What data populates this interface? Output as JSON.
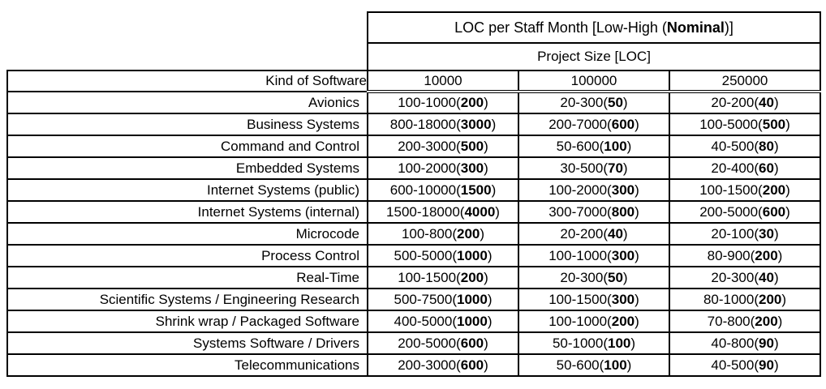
{
  "chart_data": {
    "type": "table",
    "title": {
      "prefix": "LOC per Staff Month [Low-High (",
      "bold": "Nominal",
      "suffix": ")]"
    },
    "subtitle": "Project Size [LOC]",
    "row_header_label": "Kind of Software",
    "project_sizes": [
      "10000",
      "100000",
      "250000"
    ],
    "colors": {
      "border": "#000000",
      "text": "#000000",
      "background": "#ffffff"
    },
    "rows": [
      {
        "label": "Avionics",
        "cells": [
          {
            "low_high": "100-1000",
            "nominal": "200"
          },
          {
            "low_high": "20-300",
            "nominal": "50"
          },
          {
            "low_high": "20-200",
            "nominal": "40"
          }
        ]
      },
      {
        "label": "Business Systems",
        "cells": [
          {
            "low_high": "800-18000",
            "nominal": "3000"
          },
          {
            "low_high": "200-7000",
            "nominal": "600"
          },
          {
            "low_high": "100-5000",
            "nominal": "500"
          }
        ]
      },
      {
        "label": "Command and Control",
        "cells": [
          {
            "low_high": "200-3000",
            "nominal": "500"
          },
          {
            "low_high": "50-600",
            "nominal": "100"
          },
          {
            "low_high": "40-500",
            "nominal": "80"
          }
        ]
      },
      {
        "label": "Embedded Systems",
        "cells": [
          {
            "low_high": "100-2000",
            "nominal": "300"
          },
          {
            "low_high": "30-500",
            "nominal": "70"
          },
          {
            "low_high": "20-400",
            "nominal": "60"
          }
        ]
      },
      {
        "label": "Internet Systems (public)",
        "cells": [
          {
            "low_high": "600-10000",
            "nominal": "1500"
          },
          {
            "low_high": "100-2000",
            "nominal": "300"
          },
          {
            "low_high": "100-1500",
            "nominal": "200"
          }
        ]
      },
      {
        "label": "Internet Systems (internal)",
        "cells": [
          {
            "low_high": "1500-18000",
            "nominal": "4000"
          },
          {
            "low_high": "300-7000",
            "nominal": "800"
          },
          {
            "low_high": "200-5000",
            "nominal": "600"
          }
        ]
      },
      {
        "label": "Microcode",
        "cells": [
          {
            "low_high": "100-800",
            "nominal": "200"
          },
          {
            "low_high": "20-200",
            "nominal": "40"
          },
          {
            "low_high": "20-100",
            "nominal": "30"
          }
        ]
      },
      {
        "label": "Process Control",
        "cells": [
          {
            "low_high": "500-5000",
            "nominal": "1000"
          },
          {
            "low_high": "100-1000",
            "nominal": "300"
          },
          {
            "low_high": "80-900",
            "nominal": "200"
          }
        ]
      },
      {
        "label": "Real-Time",
        "cells": [
          {
            "low_high": "100-1500",
            "nominal": "200"
          },
          {
            "low_high": "20-300",
            "nominal": "50"
          },
          {
            "low_high": "20-300",
            "nominal": "40"
          }
        ]
      },
      {
        "label": "Scientific Systems / Engineering Research",
        "cells": [
          {
            "low_high": "500-7500",
            "nominal": "1000"
          },
          {
            "low_high": "100-1500",
            "nominal": "300"
          },
          {
            "low_high": "80-1000",
            "nominal": "200"
          }
        ]
      },
      {
        "label": "Shrink wrap / Packaged Software",
        "cells": [
          {
            "low_high": "400-5000",
            "nominal": "1000"
          },
          {
            "low_high": "100-1000",
            "nominal": "200"
          },
          {
            "low_high": "70-800",
            "nominal": "200"
          }
        ]
      },
      {
        "label": "Systems Software / Drivers",
        "cells": [
          {
            "low_high": "200-5000",
            "nominal": "600"
          },
          {
            "low_high": "50-1000",
            "nominal": "100"
          },
          {
            "low_high": "40-800",
            "nominal": "90"
          }
        ]
      },
      {
        "label": "Telecommunications",
        "cells": [
          {
            "low_high": "200-3000",
            "nominal": "600"
          },
          {
            "low_high": "50-600",
            "nominal": "100"
          },
          {
            "low_high": "40-500",
            "nominal": "90"
          }
        ]
      }
    ]
  }
}
